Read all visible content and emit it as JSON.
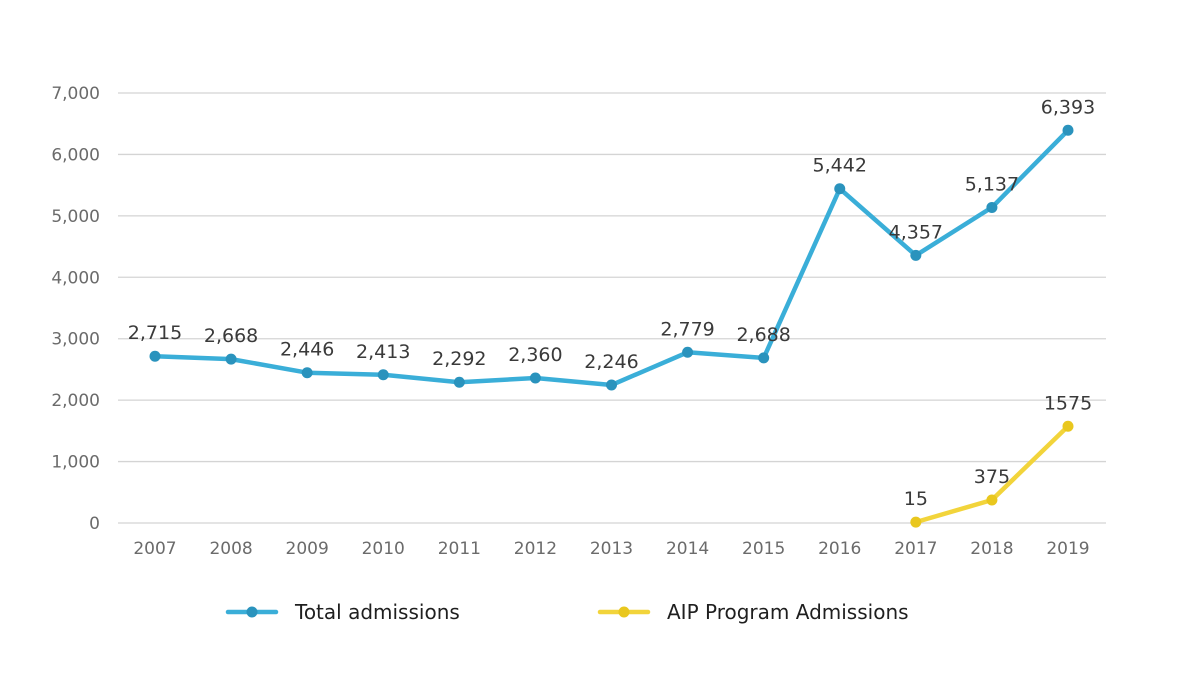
{
  "chart_data": {
    "type": "line",
    "title": "",
    "xlabel": "",
    "ylabel": "",
    "x": [
      "2007",
      "2008",
      "2009",
      "2010",
      "2011",
      "2012",
      "2013",
      "2014",
      "2015",
      "2016",
      "2017",
      "2018",
      "2019"
    ],
    "ylim": [
      0,
      7000
    ],
    "yticks": [
      0,
      1000,
      2000,
      3000,
      4000,
      5000,
      6000,
      7000
    ],
    "ytick_labels": [
      "0",
      "1,000",
      "2,000",
      "3,000",
      "4,000",
      "5,000",
      "6,000",
      "7,000"
    ],
    "grid": "horizontal",
    "legend_position": "bottom",
    "series": [
      {
        "name": "Total admissions",
        "color": "#3aaed8",
        "marker_color": "#2a93bd",
        "values": [
          2715,
          2668,
          2446,
          2413,
          2292,
          2360,
          2246,
          2779,
          2688,
          5442,
          4357,
          5137,
          6393
        ],
        "labels": [
          "2,715",
          "2,668",
          "2,446",
          "2,413",
          "2,292",
          "2,360",
          "2,246",
          "2,779",
          "2,688",
          "5,442",
          "4,357",
          "5,137",
          "6,393"
        ]
      },
      {
        "name": "AIP Program Admissions",
        "color": "#f2d43b",
        "marker_color": "#e9c71e",
        "values": [
          null,
          null,
          null,
          null,
          null,
          null,
          null,
          null,
          null,
          null,
          15,
          375,
          1575
        ],
        "labels": [
          null,
          null,
          null,
          null,
          null,
          null,
          null,
          null,
          null,
          null,
          "15",
          "375",
          "1575"
        ]
      }
    ]
  }
}
